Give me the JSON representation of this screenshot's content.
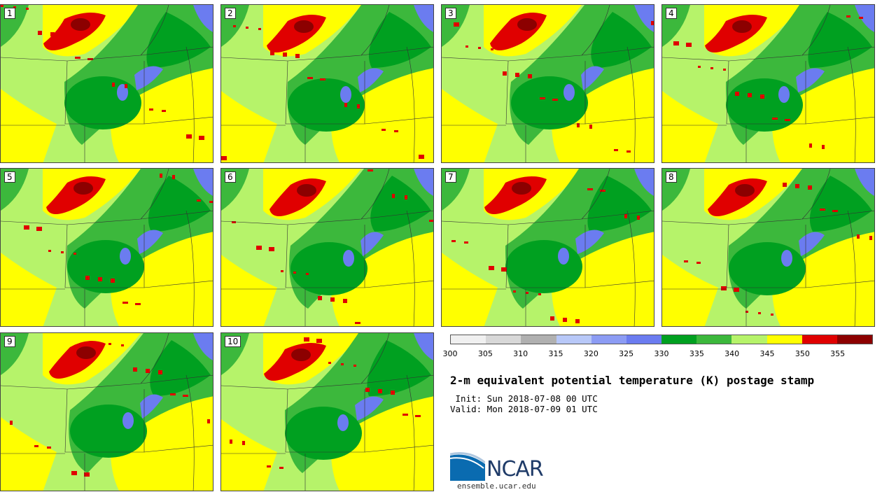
{
  "panels": [
    {
      "label": "1"
    },
    {
      "label": "2"
    },
    {
      "label": "3"
    },
    {
      "label": "4"
    },
    {
      "label": "5"
    },
    {
      "label": "6"
    },
    {
      "label": "7"
    },
    {
      "label": "8"
    },
    {
      "label": "9"
    },
    {
      "label": "10"
    }
  ],
  "colorbar": {
    "colors": [
      "#f0f0f0",
      "#d8d8d8",
      "#b0b0b0",
      "#b8c8f8",
      "#8c9cf4",
      "#6b7cf0",
      "#00a020",
      "#3cb83c",
      "#b6f36a",
      "#ffff00",
      "#e00000",
      "#8c0000"
    ],
    "tick_labels": [
      "300",
      "305",
      "310",
      "315",
      "320",
      "325",
      "330",
      "335",
      "340",
      "345",
      "350",
      "355"
    ]
  },
  "title": "2-m equivalent potential temperature (K) postage stamp",
  "init": " Init: Sun 2018-07-08 00 UTC",
  "valid": "Valid: Mon 2018-07-09 01 UTC",
  "logo": {
    "text": "NCAR",
    "url_text": "ensemble.ucar.edu"
  }
}
